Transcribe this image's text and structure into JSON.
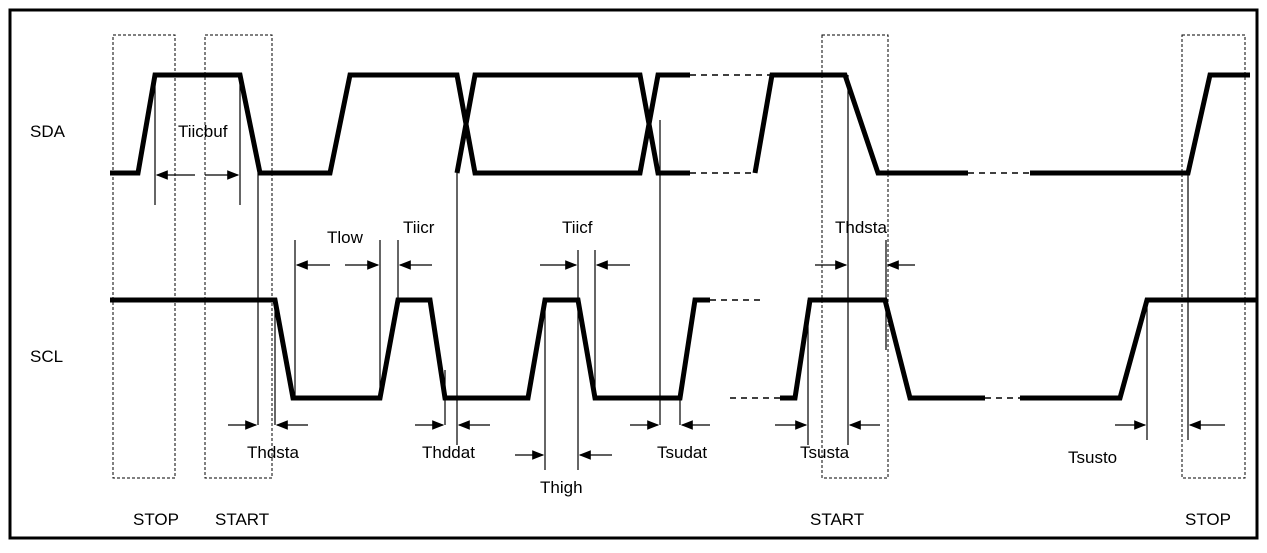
{
  "signals": {
    "sda": "SDA",
    "scl": "SCL"
  },
  "timing_labels": [
    "Tiicbuf",
    "Tlow",
    "Tiicr",
    "Tiicf",
    "Thdsta",
    "Thdsta",
    "Thddat",
    "Thigh",
    "Tsudat",
    "Tsusta",
    "Tsusto"
  ],
  "conditions": [
    "STOP",
    "START",
    "START",
    "STOP"
  ]
}
